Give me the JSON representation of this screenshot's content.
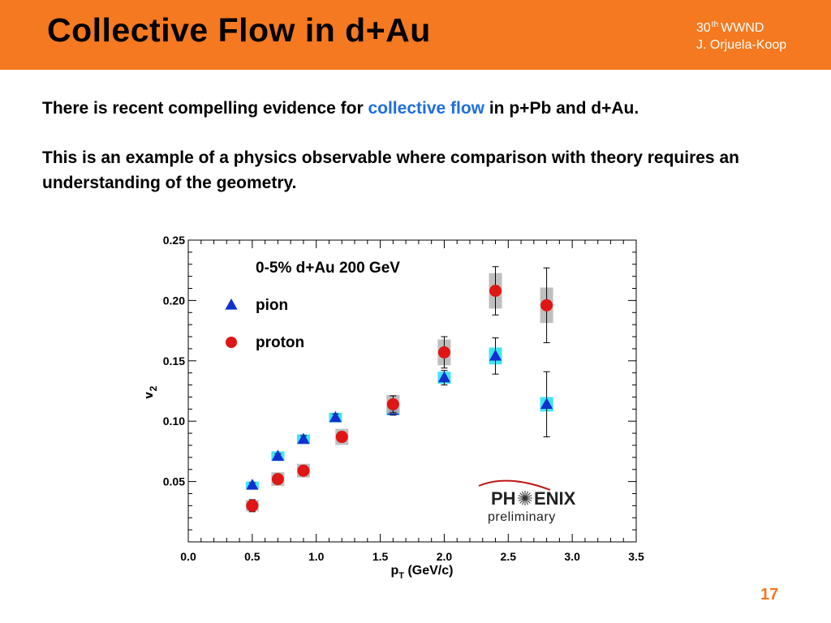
{
  "header": {
    "title": "Collective Flow in d+Au",
    "conference_number": "30",
    "conference_sup": "th",
    "conference_name": "WWND",
    "author": "J. Orjuela-Koop",
    "bg_color": "#f47920"
  },
  "body": {
    "para1_before": "There is recent compelling evidence for ",
    "para1_highlight": "collective flow",
    "para1_after": " in p+Pb and d+Au.",
    "para2": "This is an example of a physics observable where comparison with theory requires an understanding of the geometry.",
    "highlight_color": "#1f6fde"
  },
  "chart_data": {
    "type": "scatter",
    "title": "0-5% d+Au 200 GeV",
    "xlabel": "p_T (GeV/c)",
    "ylabel": "v_2",
    "xlim": [
      0.0,
      3.5
    ],
    "ylim": [
      0.0,
      0.25
    ],
    "x_ticks": [
      "0.0",
      "0.5",
      "1.0",
      "1.5",
      "2.0",
      "2.5",
      "3.0",
      "3.5"
    ],
    "y_ticks": [
      "0.05",
      "0.10",
      "0.15",
      "0.20",
      "0.25"
    ],
    "legend_position": "top-left",
    "grid": false,
    "series": [
      {
        "name": "pion",
        "marker": "triangle",
        "color": "#1030d0",
        "sys_color": "#20e0f0",
        "points": [
          {
            "x": 0.5,
            "y": 0.047,
            "err": 0.002,
            "sys": 0.003
          },
          {
            "x": 0.7,
            "y": 0.071,
            "err": 0.002,
            "sys": 0.004
          },
          {
            "x": 0.9,
            "y": 0.085,
            "err": 0.003,
            "sys": 0.004
          },
          {
            "x": 1.15,
            "y": 0.103,
            "err": 0.003,
            "sys": 0.004
          },
          {
            "x": 1.6,
            "y": 0.109,
            "err": 0.004,
            "sys": 0.004
          },
          {
            "x": 2.0,
            "y": 0.136,
            "err": 0.006,
            "sys": 0.005
          },
          {
            "x": 2.4,
            "y": 0.154,
            "err": 0.015,
            "sys": 0.007
          },
          {
            "x": 2.8,
            "y": 0.114,
            "err": 0.027,
            "sys": 0.006
          }
        ]
      },
      {
        "name": "proton",
        "marker": "circle",
        "color": "#e01515",
        "sys_color": "#b4b4b4",
        "points": [
          {
            "x": 0.5,
            "y": 0.03,
            "err": 0.005,
            "sys": 0.002
          },
          {
            "x": 0.7,
            "y": 0.052,
            "err": 0.004,
            "sys": 0.003
          },
          {
            "x": 0.9,
            "y": 0.059,
            "err": 0.004,
            "sys": 0.003
          },
          {
            "x": 1.2,
            "y": 0.087,
            "err": 0.004,
            "sys": 0.004
          },
          {
            "x": 1.6,
            "y": 0.114,
            "err": 0.007,
            "sys": 0.005
          },
          {
            "x": 2.0,
            "y": 0.157,
            "err": 0.013,
            "sys": 0.008
          },
          {
            "x": 2.4,
            "y": 0.208,
            "err": 0.02,
            "sys": 0.012
          },
          {
            "x": 2.8,
            "y": 0.196,
            "err": 0.031,
            "sys": 0.012
          }
        ]
      }
    ]
  },
  "logo": {
    "name_left": "PH",
    "name_right": "ENIX",
    "subtitle": "preliminary"
  },
  "footer": {
    "page_number": "17"
  }
}
